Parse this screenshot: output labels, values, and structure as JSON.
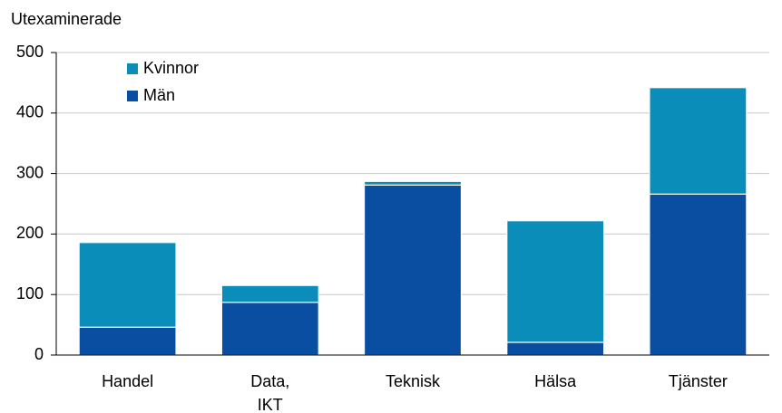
{
  "chart_data": {
    "type": "stacked_bar",
    "y_label": "Utexaminerade",
    "categories": [
      "Handel",
      "Data,\nIKT",
      "Teknisk",
      "Hälsa",
      "Tjänster"
    ],
    "series": [
      {
        "name": "Män",
        "color": "#0a4ea2",
        "values": [
          46,
          87,
          281,
          21,
          266
        ]
      },
      {
        "name": "Kvinnor",
        "color": "#0a8db8",
        "values": [
          140,
          28,
          6,
          201,
          176
        ]
      }
    ],
    "ylim": [
      0,
      500
    ],
    "yticks": [
      0,
      100,
      200,
      300,
      400,
      500
    ],
    "grid": true,
    "legend": "top-left"
  }
}
